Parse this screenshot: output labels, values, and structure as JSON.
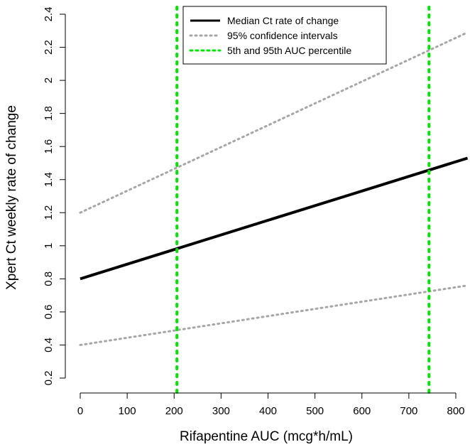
{
  "chart_data": {
    "type": "line",
    "title": "",
    "xlabel": "Rifapentine AUC (mcg*h/mL)",
    "ylabel": "Xpert Ct weekly rate of change",
    "xlim": [
      0,
      825
    ],
    "ylim": [
      0.15,
      2.42
    ],
    "xticks": [
      0,
      100,
      200,
      300,
      400,
      500,
      600,
      700,
      800
    ],
    "yticks": [
      0.2,
      0.4,
      0.6,
      0.8,
      1,
      1.2,
      1.4,
      1.6,
      1.8,
      2,
      2.2,
      2.4
    ],
    "ytick_labels": [
      "0.2",
      "0.4",
      "0.6",
      "0.8",
      "1",
      "1.2",
      "1.4",
      "1.6",
      "1.8",
      "2",
      "2.2",
      "2.4"
    ],
    "grid": false,
    "legend_position": "top-right",
    "series": [
      {
        "name": "Median Ct rate of change",
        "style": "solid",
        "color": "#000000",
        "x": [
          0,
          825
        ],
        "y": [
          0.8,
          1.53
        ]
      },
      {
        "name": "95% confidence intervals",
        "style": "dotted",
        "color": "#a6a6a6",
        "x": [
          0,
          825
        ],
        "y": [
          1.2,
          2.29
        ]
      },
      {
        "name": "",
        "style": "dotted",
        "color": "#a6a6a6",
        "x": [
          0,
          825
        ],
        "y": [
          0.4,
          0.76
        ]
      }
    ],
    "vlines": {
      "name": "5th and 95th AUC percentile",
      "color": "#00e600",
      "style": "dotted",
      "x": [
        206,
        743
      ]
    }
  }
}
